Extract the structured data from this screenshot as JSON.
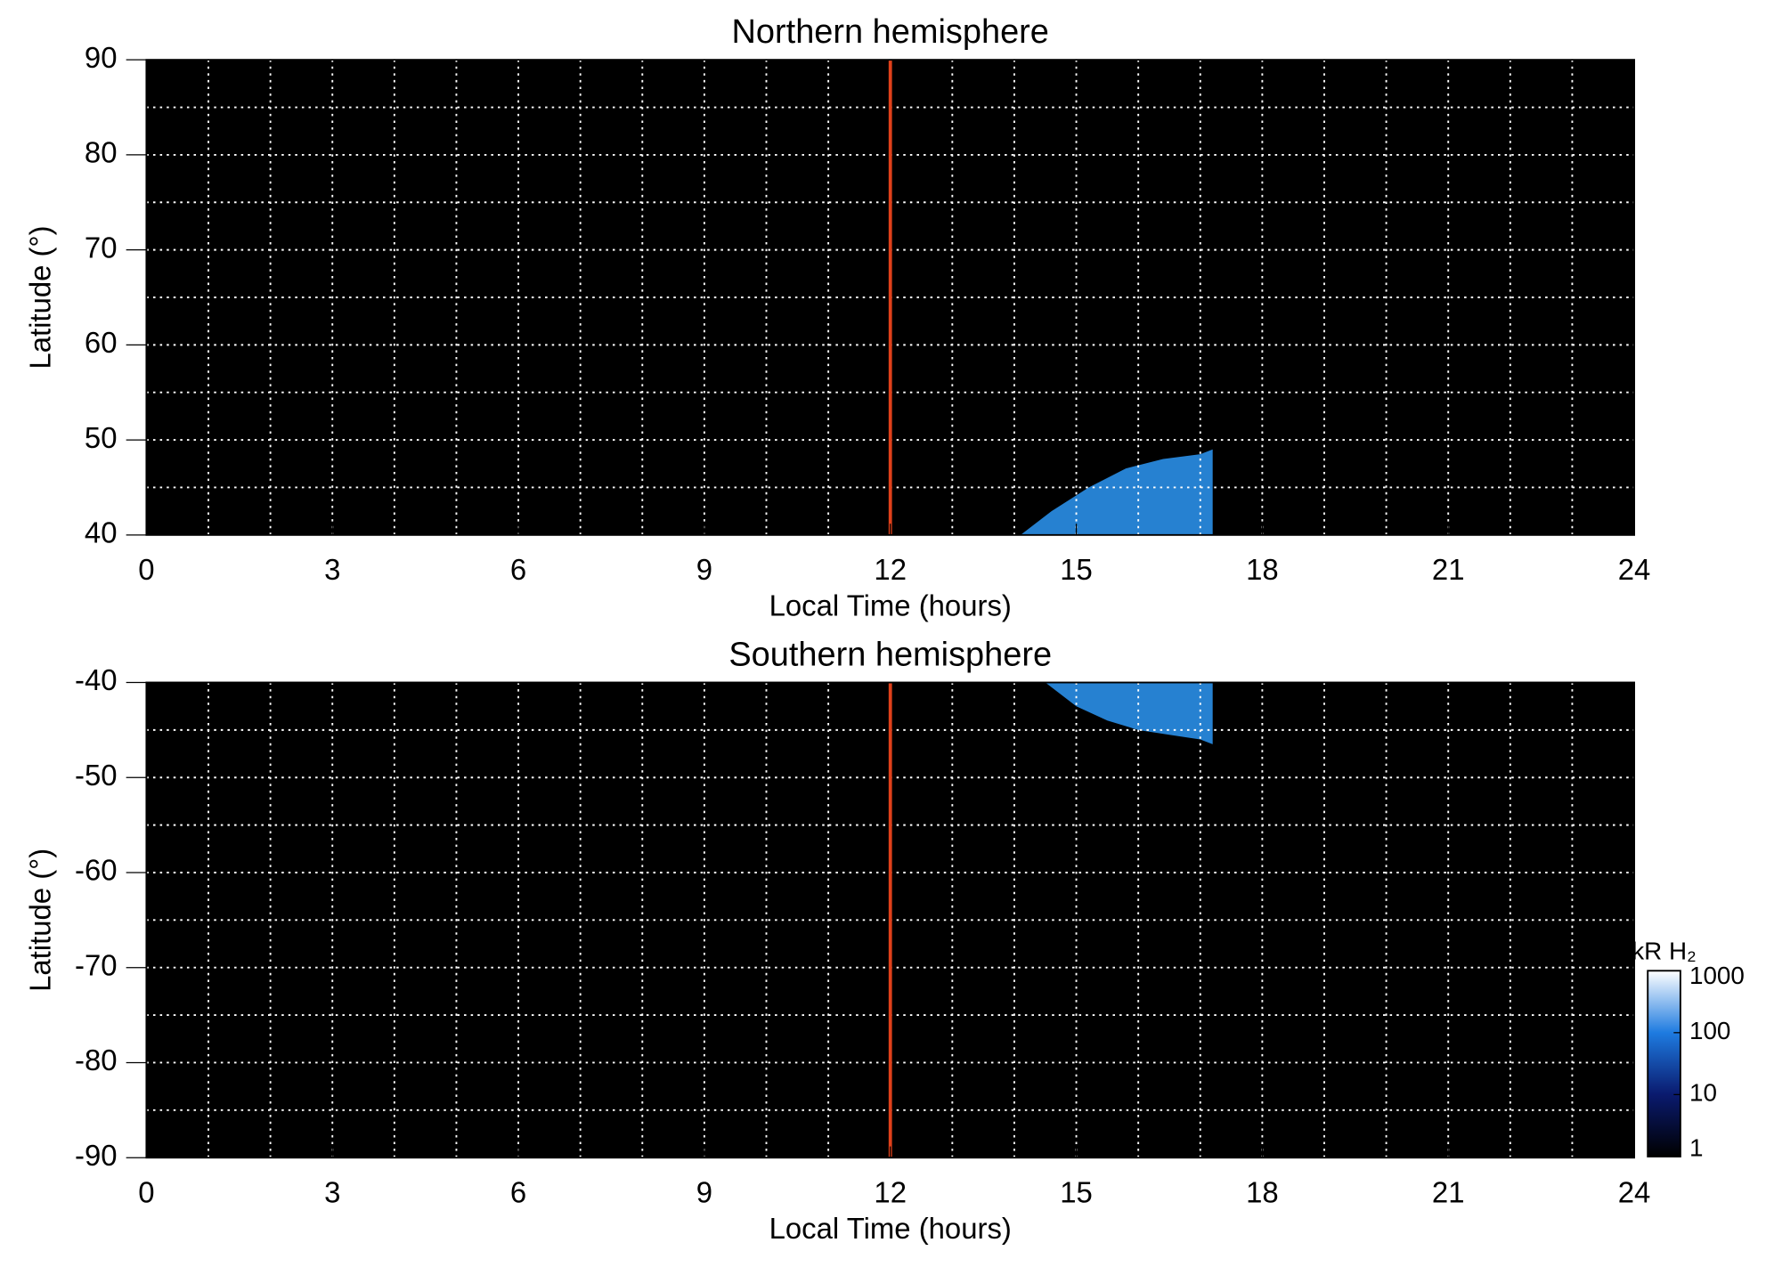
{
  "chart_data": [
    {
      "type": "area",
      "title": "Northern hemisphere",
      "xlabel": "Local Time (hours)",
      "ylabel": "Latitude (°)",
      "x": [
        14.1,
        14.6,
        15.2,
        15.8,
        16.4,
        17.0,
        17.2
      ],
      "values": [
        40,
        42.5,
        45,
        47,
        48,
        48.5,
        49
      ],
      "color": "#2a8fe8",
      "xlim": [
        0,
        24
      ],
      "ylim": [
        40,
        90
      ],
      "xticks": [
        0,
        3,
        6,
        9,
        12,
        15,
        18,
        21,
        24
      ],
      "yticks": [
        40,
        50,
        60,
        70,
        80,
        90
      ],
      "xgrid": [
        1,
        2,
        3,
        4,
        5,
        6,
        7,
        8,
        9,
        10,
        11,
        12,
        13,
        14,
        15,
        16,
        17,
        18,
        19,
        20,
        21,
        22,
        23
      ],
      "ygrid": [
        45,
        50,
        55,
        60,
        65,
        70,
        75,
        80,
        85
      ],
      "vline": {
        "value": 12,
        "color": "#e0401a"
      }
    },
    {
      "type": "area",
      "title": "Southern hemisphere",
      "xlabel": "Local Time (hours)",
      "ylabel": "Latitude (°)",
      "x": [
        14.5,
        15.0,
        15.5,
        16.0,
        16.5,
        17.0,
        17.2
      ],
      "values": [
        -40,
        -42.5,
        -44,
        -45,
        -45.5,
        -46,
        -46.5
      ],
      "color": "#2a8fe8",
      "xlim": [
        0,
        24
      ],
      "ylim": [
        -90,
        -40
      ],
      "xticks": [
        0,
        3,
        6,
        9,
        12,
        15,
        18,
        21,
        24
      ],
      "yticks": [
        -90,
        -80,
        -70,
        -60,
        -50,
        -40
      ],
      "xgrid": [
        1,
        2,
        3,
        4,
        5,
        6,
        7,
        8,
        9,
        10,
        11,
        12,
        13,
        14,
        15,
        16,
        17,
        18,
        19,
        20,
        21,
        22,
        23
      ],
      "ygrid": [
        -85,
        -80,
        -75,
        -70,
        -65,
        -60,
        -55,
        -50,
        -45
      ],
      "vline": {
        "value": 12,
        "color": "#e0401a"
      }
    }
  ],
  "colorbar": {
    "label": "kR H₂",
    "lim": [
      1,
      1000
    ],
    "ticks": [
      1,
      10,
      100,
      1000
    ],
    "log": true,
    "colors": [
      "#000000",
      "#0a1a6e",
      "#1e7be0",
      "#ffffff"
    ]
  }
}
